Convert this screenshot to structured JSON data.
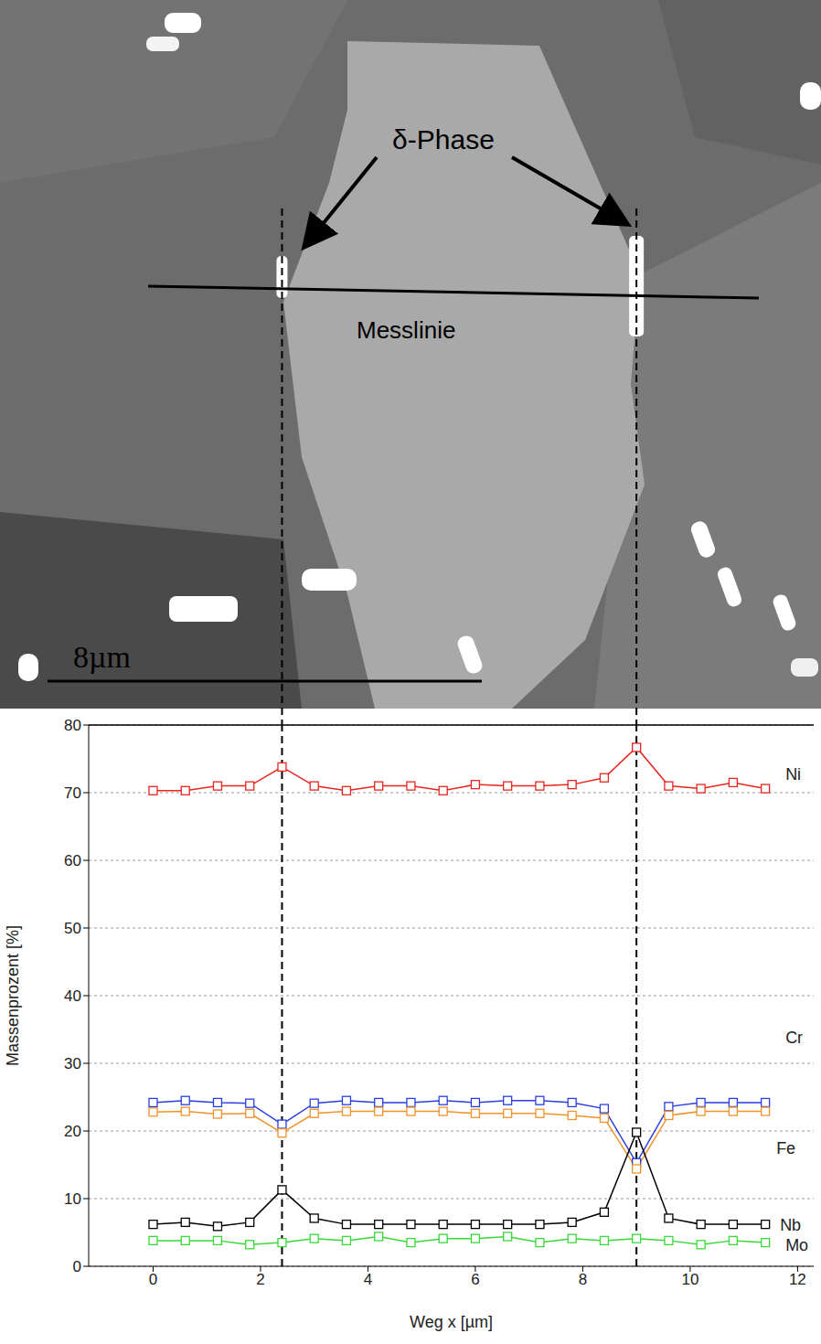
{
  "image": {
    "labels": {
      "phase": "δ-Phase",
      "line": "Messlinie",
      "scale_bar": "8µm"
    }
  },
  "chart_data": {
    "type": "line",
    "x_label": "Weg x [µm]",
    "y_label": "Massenprozent [%]",
    "x": [
      0,
      0.6,
      1.2,
      1.8,
      2.4,
      3.0,
      3.6,
      4.2,
      4.8,
      5.4,
      6.0,
      6.6,
      7.2,
      7.8,
      8.4,
      9.0,
      9.6,
      10.2,
      10.8,
      11.4
    ],
    "xlim": [
      -1.2,
      12.3
    ],
    "xticks": [
      0,
      2,
      4,
      6,
      8,
      10,
      12
    ],
    "ylim": [
      0,
      80
    ],
    "yticks": [
      0,
      10,
      20,
      30,
      40,
      50,
      60,
      70,
      80
    ],
    "grid": true,
    "marker": "square",
    "reference_lines": [
      2.4,
      9.0
    ],
    "series": [
      {
        "name": "Ni",
        "color": "#e8251f",
        "values": [
          70.3,
          70.3,
          71,
          71,
          73.8,
          71,
          70.3,
          71,
          71,
          70.3,
          71.2,
          71,
          71,
          71.2,
          72.2,
          76.7,
          71,
          70.6,
          71.5,
          70.6
        ]
      },
      {
        "name": "Cr",
        "color": "#2a3fe0",
        "values": [
          24.2,
          24.5,
          24.2,
          24.1,
          21,
          24.1,
          24.5,
          24.2,
          24.2,
          24.5,
          24.2,
          24.5,
          24.5,
          24.2,
          23.3,
          15.3,
          23.6,
          24.2,
          24.2,
          24.2
        ]
      },
      {
        "name": "Fe",
        "color": "#f0932c",
        "values": [
          22.8,
          22.9,
          22.5,
          22.6,
          19.7,
          22.6,
          22.9,
          22.9,
          22.9,
          22.9,
          22.6,
          22.6,
          22.6,
          22.3,
          21.9,
          14.4,
          22.3,
          22.9,
          22.9,
          22.9
        ]
      },
      {
        "name": "Nb",
        "color": "#000000",
        "values": [
          6.2,
          6.5,
          5.9,
          6.5,
          11.3,
          7.1,
          6.2,
          6.2,
          6.2,
          6.2,
          6.2,
          6.2,
          6.2,
          6.5,
          8,
          19.8,
          7.1,
          6.2,
          6.2,
          6.2
        ]
      },
      {
        "name": "Mo",
        "color": "#3ad83a",
        "values": [
          3.8,
          3.8,
          3.8,
          3.2,
          3.5,
          4.1,
          3.8,
          4.4,
          3.5,
          4.1,
          4.1,
          4.4,
          3.5,
          4.1,
          3.8,
          4.1,
          3.8,
          3.2,
          3.8,
          3.5
        ]
      }
    ]
  }
}
